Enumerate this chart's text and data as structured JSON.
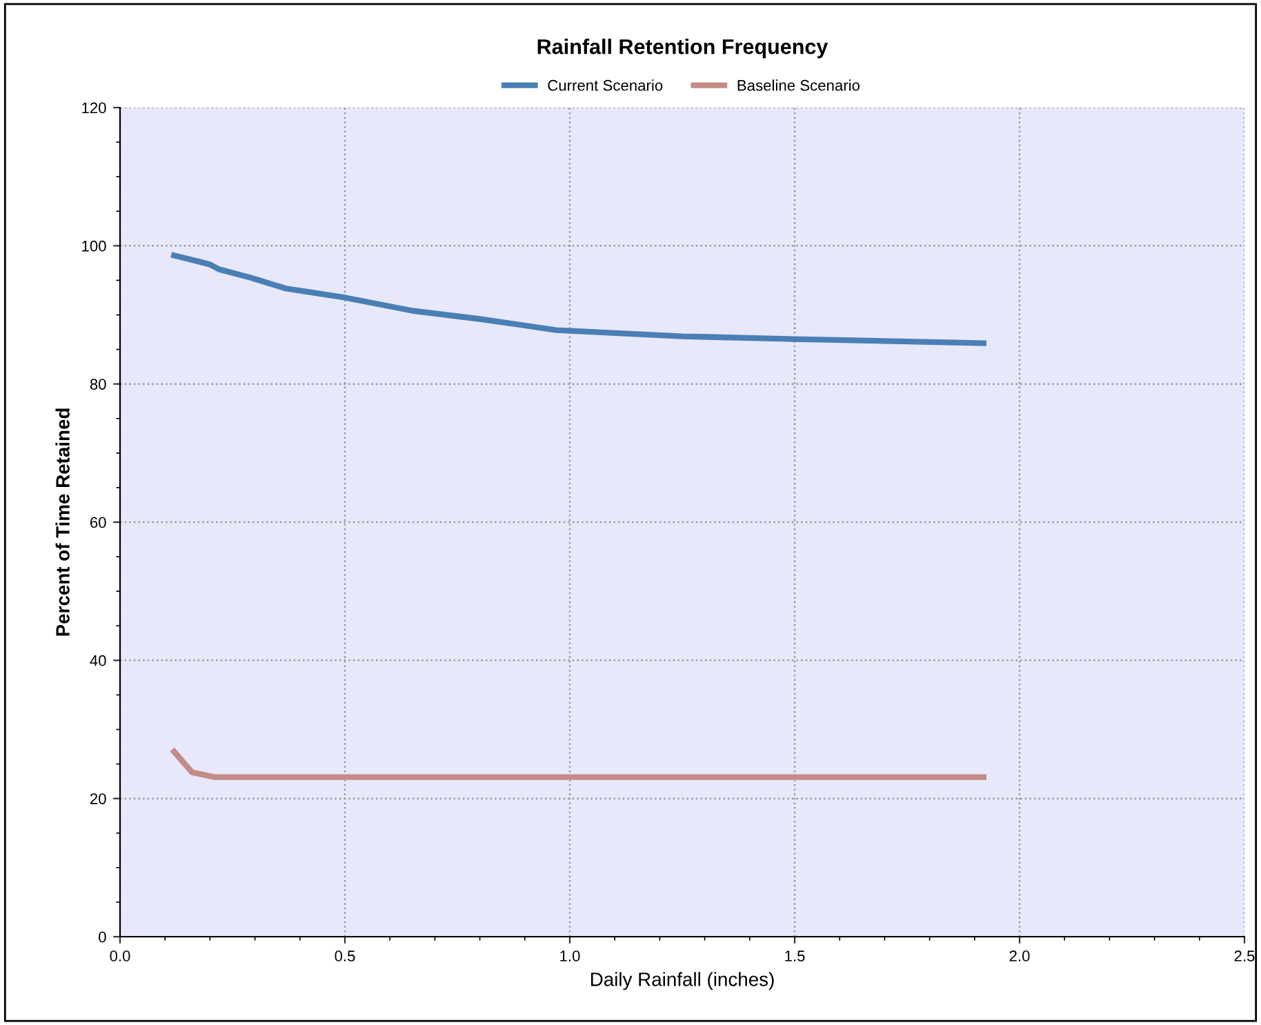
{
  "chart_data": {
    "type": "line",
    "title": "Rainfall Retention Frequency",
    "xlabel": "Daily Rainfall (inches)",
    "ylabel": "Percent of Time Retained",
    "series": [
      {
        "name": "Current Scenario",
        "color": "#4a7fb5",
        "x": [
          0.12,
          0.17,
          0.2,
          0.22,
          0.29,
          0.37,
          0.5,
          0.65,
          0.8,
          0.97,
          1.25,
          1.5,
          1.92
        ],
        "values": [
          98.6,
          97.8,
          97.3,
          96.6,
          95.4,
          93.8,
          92.5,
          90.6,
          89.4,
          87.8,
          86.9,
          86.5,
          85.9
        ]
      },
      {
        "name": "Baseline Scenario",
        "color": "#c48a85",
        "x": [
          0.12,
          0.16,
          0.21,
          1.92
        ],
        "values": [
          26.8,
          23.8,
          23.1,
          23.1
        ]
      }
    ],
    "xlim": [
      0.0,
      2.5
    ],
    "xticks": [
      {
        "value": 0,
        "label": "0.0"
      },
      0.5,
      {
        "value": 1,
        "label": "1.0"
      },
      1.5,
      {
        "value": 2,
        "label": "2.0"
      },
      2.5
    ],
    "ylim": [
      0,
      120
    ],
    "yticks": [
      0,
      20,
      40,
      60,
      80,
      100,
      120
    ],
    "grid": true,
    "legend": "top",
    "marker": "none",
    "line_style": "solid"
  }
}
